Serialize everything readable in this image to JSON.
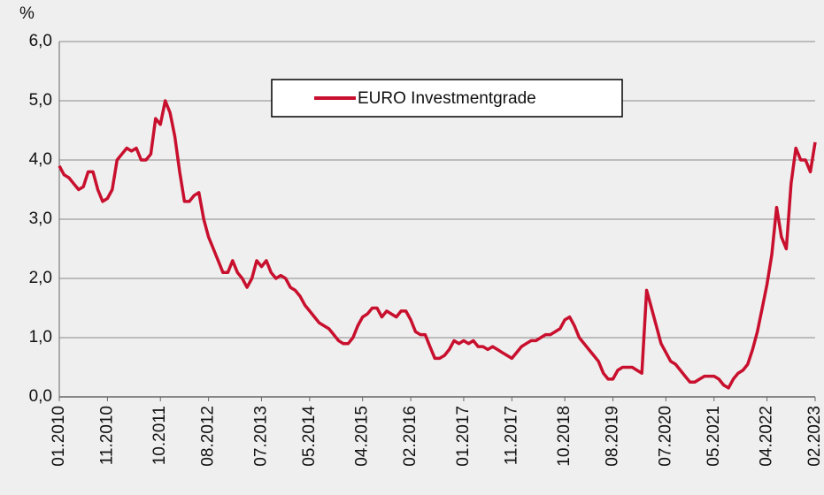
{
  "chart_data": {
    "type": "line",
    "y_label": "%",
    "x": [
      "01.2010",
      "02.2010",
      "03.2010",
      "04.2010",
      "05.2010",
      "06.2010",
      "07.2010",
      "08.2010",
      "09.2010",
      "10.2010",
      "11.2010",
      "12.2010",
      "01.2011",
      "02.2011",
      "03.2011",
      "04.2011",
      "05.2011",
      "06.2011",
      "07.2011",
      "08.2011",
      "09.2011",
      "10.2011",
      "11.2011",
      "12.2011",
      "01.2012",
      "02.2012",
      "03.2012",
      "04.2012",
      "05.2012",
      "06.2012",
      "07.2012",
      "08.2012",
      "09.2012",
      "10.2012",
      "11.2012",
      "12.2012",
      "01.2013",
      "02.2013",
      "03.2013",
      "04.2013",
      "05.2013",
      "06.2013",
      "07.2013",
      "08.2013",
      "09.2013",
      "10.2013",
      "11.2013",
      "12.2013",
      "01.2014",
      "02.2014",
      "03.2014",
      "04.2014",
      "05.2014",
      "06.2014",
      "07.2014",
      "08.2014",
      "09.2014",
      "10.2014",
      "11.2014",
      "12.2014",
      "01.2015",
      "02.2015",
      "03.2015",
      "04.2015",
      "05.2015",
      "06.2015",
      "07.2015",
      "08.2015",
      "09.2015",
      "10.2015",
      "11.2015",
      "12.2015",
      "01.2016",
      "02.2016",
      "03.2016",
      "04.2016",
      "05.2016",
      "06.2016",
      "07.2016",
      "08.2016",
      "09.2016",
      "10.2016",
      "11.2016",
      "12.2016",
      "01.2017",
      "02.2017",
      "03.2017",
      "04.2017",
      "05.2017",
      "06.2017",
      "07.2017",
      "08.2017",
      "09.2017",
      "10.2017",
      "11.2017",
      "12.2017",
      "01.2018",
      "02.2018",
      "03.2018",
      "04.2018",
      "05.2018",
      "06.2018",
      "07.2018",
      "08.2018",
      "09.2018",
      "10.2018",
      "11.2018",
      "12.2018",
      "01.2019",
      "02.2019",
      "03.2019",
      "04.2019",
      "05.2019",
      "06.2019",
      "07.2019",
      "08.2019",
      "09.2019",
      "10.2019",
      "11.2019",
      "12.2019",
      "01.2020",
      "02.2020",
      "03.2020",
      "04.2020",
      "05.2020",
      "06.2020",
      "07.2020",
      "08.2020",
      "09.2020",
      "10.2020",
      "11.2020",
      "12.2020",
      "01.2021",
      "02.2021",
      "03.2021",
      "04.2021",
      "05.2021",
      "06.2021",
      "07.2021",
      "08.2021",
      "09.2021",
      "10.2021",
      "11.2021",
      "12.2021",
      "01.2022",
      "02.2022",
      "03.2022",
      "04.2022",
      "05.2022",
      "06.2022",
      "07.2022",
      "08.2022",
      "09.2022",
      "10.2022",
      "11.2022",
      "12.2022",
      "01.2023",
      "02.2023"
    ],
    "series": [
      {
        "name": "EURO Investmentgrade",
        "color": "#c8102e",
        "values": [
          3.9,
          3.75,
          3.7,
          3.6,
          3.5,
          3.55,
          3.8,
          3.8,
          3.5,
          3.3,
          3.35,
          3.5,
          4.0,
          4.1,
          4.2,
          4.15,
          4.2,
          4.0,
          4.0,
          4.1,
          4.7,
          4.6,
          5.0,
          4.8,
          4.4,
          3.8,
          3.3,
          3.3,
          3.4,
          3.45,
          3.0,
          2.7,
          2.5,
          2.3,
          2.1,
          2.1,
          2.3,
          2.1,
          2.0,
          1.85,
          2.0,
          2.3,
          2.2,
          2.3,
          2.1,
          2.0,
          2.05,
          2.0,
          1.85,
          1.8,
          1.7,
          1.55,
          1.45,
          1.35,
          1.25,
          1.2,
          1.15,
          1.05,
          0.95,
          0.9,
          0.9,
          1.0,
          1.2,
          1.35,
          1.4,
          1.5,
          1.5,
          1.35,
          1.45,
          1.4,
          1.35,
          1.45,
          1.45,
          1.3,
          1.1,
          1.05,
          1.05,
          0.85,
          0.65,
          0.65,
          0.7,
          0.8,
          0.95,
          0.9,
          0.95,
          0.9,
          0.95,
          0.85,
          0.85,
          0.8,
          0.85,
          0.8,
          0.75,
          0.7,
          0.65,
          0.75,
          0.85,
          0.9,
          0.95,
          0.95,
          1.0,
          1.05,
          1.05,
          1.1,
          1.15,
          1.3,
          1.35,
          1.2,
          1.0,
          0.9,
          0.8,
          0.7,
          0.6,
          0.4,
          0.3,
          0.3,
          0.45,
          0.5,
          0.5,
          0.5,
          0.45,
          0.4,
          1.8,
          1.5,
          1.2,
          0.9,
          0.75,
          0.6,
          0.55,
          0.45,
          0.35,
          0.25,
          0.25,
          0.3,
          0.35,
          0.35,
          0.35,
          0.3,
          0.2,
          0.15,
          0.3,
          0.4,
          0.45,
          0.55,
          0.8,
          1.1,
          1.5,
          1.9,
          2.4,
          3.2,
          2.7,
          2.5,
          3.6,
          4.2,
          4.0,
          4.0,
          3.8,
          4.3
        ]
      }
    ],
    "xticks": [
      "01.2010",
      "11.2010",
      "10.2011",
      "08.2012",
      "07.2013",
      "05.2014",
      "04.2015",
      "02.2016",
      "01.2017",
      "11.2017",
      "10.2018",
      "08.2019",
      "07.2020",
      "05.2021",
      "04.2022",
      "02.2023"
    ],
    "ylim": [
      0,
      6
    ],
    "yticks": [
      {
        "value": 0,
        "label": "0,0"
      },
      {
        "value": 1,
        "label": "1,0"
      },
      {
        "value": 2,
        "label": "2,0"
      },
      {
        "value": 3,
        "label": "3,0"
      },
      {
        "value": 4,
        "label": "4,0"
      },
      {
        "value": 5,
        "label": "5,0"
      },
      {
        "value": 6,
        "label": "6,0"
      }
    ],
    "grid": true,
    "legend": "top"
  }
}
